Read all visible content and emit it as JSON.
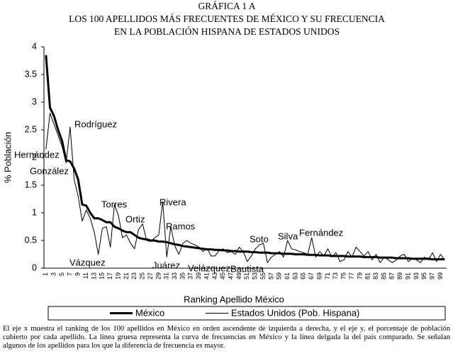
{
  "chart_data": {
    "type": "line",
    "title_lines": [
      "GRÁFICA 1 A",
      "LOS 100 APELLIDOS MÁS FRECUENTES DE MÉXICO Y SU FRECUENCIA",
      "EN LA POBLACIÓN HISPANA DE ESTADOS UNIDOS"
    ],
    "y_label": "% Población",
    "x_label": "Ranking Apellido México",
    "ylim": [
      0,
      4
    ],
    "yticks": [
      0,
      0.5,
      1,
      1.5,
      2,
      2.5,
      3,
      3.5,
      4
    ],
    "categories": [
      1,
      null,
      3,
      null,
      5,
      null,
      7,
      null,
      9,
      null,
      11,
      null,
      13,
      null,
      15,
      null,
      17,
      null,
      19,
      null,
      21,
      null,
      23,
      null,
      25,
      null,
      27,
      null,
      29,
      null,
      31,
      null,
      33,
      null,
      35,
      null,
      37,
      null,
      39,
      null,
      41,
      null,
      43,
      null,
      45,
      null,
      47,
      null,
      49,
      null,
      51,
      null,
      53,
      null,
      55,
      null,
      57,
      null,
      59,
      null,
      61,
      null,
      63,
      null,
      65,
      null,
      67,
      null,
      69,
      null,
      71,
      null,
      73,
      null,
      75,
      null,
      77,
      null,
      79,
      null,
      81,
      null,
      83,
      null,
      85,
      null,
      87,
      null,
      89,
      null,
      91,
      null,
      93,
      null,
      95,
      null,
      97,
      null,
      99,
      null
    ],
    "series": [
      {
        "name": "México",
        "color": "#000000",
        "values": [
          3.85,
          2.9,
          2.75,
          2.5,
          2.3,
          1.95,
          1.93,
          1.8,
          1.6,
          1.15,
          1.13,
          1.0,
          0.9,
          0.9,
          0.87,
          0.83,
          0.83,
          0.75,
          0.72,
          0.68,
          0.65,
          0.65,
          0.6,
          0.55,
          0.53,
          0.52,
          0.5,
          0.5,
          0.48,
          0.48,
          0.47,
          0.45,
          0.43,
          0.42,
          0.4,
          0.39,
          0.38,
          0.37,
          0.36,
          0.35,
          0.34,
          0.34,
          0.33,
          0.33,
          0.32,
          0.32,
          0.31,
          0.31,
          0.3,
          0.3,
          0.3,
          0.29,
          0.29,
          0.28,
          0.28,
          0.28,
          0.27,
          0.27,
          0.27,
          0.26,
          0.26,
          0.26,
          0.25,
          0.25,
          0.25,
          0.24,
          0.24,
          0.24,
          0.23,
          0.23,
          0.23,
          0.22,
          0.22,
          0.22,
          0.22,
          0.21,
          0.21,
          0.21,
          0.21,
          0.2,
          0.2,
          0.2,
          0.2,
          0.19,
          0.19,
          0.19,
          0.19,
          0.18,
          0.18,
          0.18,
          0.18,
          0.17,
          0.17,
          0.17,
          0.17,
          0.17,
          0.16,
          0.16,
          0.16,
          0.16
        ]
      },
      {
        "name": "Estados Unidos (Pob. Hispana)",
        "color": "#000000",
        "values": [
          2.15,
          2.8,
          2.6,
          2.4,
          2.2,
          1.9,
          2.55,
          1.6,
          1.3,
          0.85,
          1.05,
          0.9,
          0.65,
          0.25,
          0.72,
          0.75,
          0.38,
          1.15,
          0.95,
          0.55,
          0.6,
          0.45,
          0.35,
          0.7,
          0.8,
          0.5,
          0.48,
          0.55,
          0.6,
          1.2,
          0.2,
          0.75,
          0.4,
          0.25,
          0.45,
          0.5,
          0.45,
          0.42,
          0.38,
          0.3,
          0.36,
          0.22,
          0.22,
          0.32,
          0.35,
          0.28,
          0.3,
          0.25,
          0.38,
          0.3,
          0.12,
          0.22,
          0.35,
          0.42,
          0.45,
          0.1,
          0.2,
          0.25,
          0.3,
          0.2,
          0.5,
          0.35,
          0.33,
          0.3,
          0.28,
          0.25,
          0.55,
          0.2,
          0.3,
          0.22,
          0.35,
          0.2,
          0.28,
          0.12,
          0.15,
          0.3,
          0.2,
          0.38,
          0.3,
          0.22,
          0.3,
          0.15,
          0.25,
          0.1,
          0.2,
          0.15,
          0.1,
          0.15,
          0.22,
          0.25,
          0.12,
          0.18,
          0.15,
          0.1,
          0.2,
          0.15,
          0.28,
          0.12,
          0.25,
          0.15
        ]
      }
    ],
    "annotations": [
      "Rodríguez",
      "Hernández",
      "González",
      "Vázquez",
      "Torres",
      "Ortiz",
      "Rivera",
      "Ramos",
      "Juárez",
      "Velázquez",
      "Bautista",
      "Soto",
      "Silva",
      "Fernández"
    ],
    "caption": "El eje x muestra el ranking de los 100 apellidos en México en orden ascendente de izquierda a derecha, y el eje y, el porcentaje de población cubierto por cada apellido. La línea gruesa representa la curva de frecuencias en México y la línea delgada la del país comparado. Se señalan algunos de los apellidos para los que la diferencia de frecuencia es mayor."
  }
}
